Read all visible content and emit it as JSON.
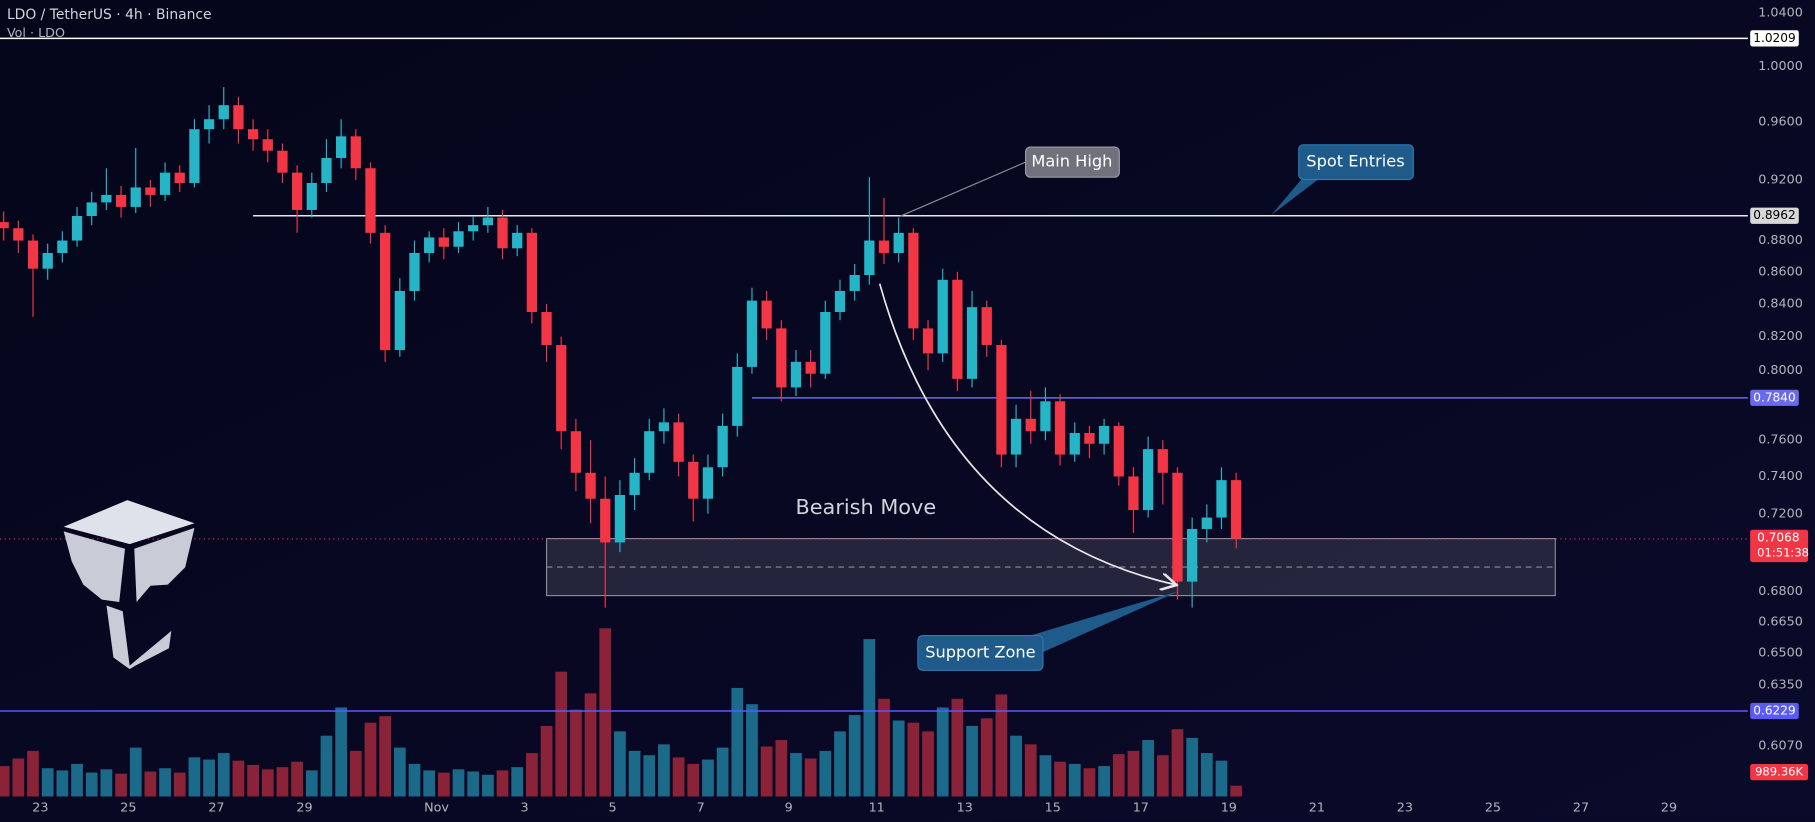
{
  "header": {
    "symbol": "LDO / TetherUS · 4h · Binance",
    "volume_label": "Vol · LDO"
  },
  "chart_data": {
    "type": "candlestick",
    "up_color": "#26b5c6",
    "down_color": "#f23645",
    "vol_up_color": "#1c6a8a",
    "vol_down_color": "#8a2238",
    "x": [
      4,
      12,
      20,
      28,
      36,
      44,
      52,
      60,
      68,
      76,
      84,
      92,
      100,
      108,
      116,
      124,
      132,
      140,
      148,
      156,
      164,
      172,
      180,
      188,
      196,
      204,
      212,
      220,
      228,
      236,
      244,
      252,
      260,
      268,
      276,
      284,
      292,
      300,
      308,
      316,
      324,
      332,
      340,
      348,
      356,
      364,
      372,
      380,
      388,
      396,
      404,
      412,
      420,
      428,
      436,
      444,
      452,
      460,
      468,
      476,
      484,
      492,
      500,
      508,
      516,
      524,
      532,
      540,
      548,
      556,
      564,
      572,
      580,
      588,
      596,
      604,
      612,
      620,
      628,
      636,
      644,
      652,
      660,
      668,
      676
    ],
    "candles": [
      [
        0.892,
        0.899,
        0.88,
        0.888
      ],
      [
        0.888,
        0.893,
        0.872,
        0.88
      ],
      [
        0.88,
        0.884,
        0.832,
        0.862
      ],
      [
        0.862,
        0.878,
        0.855,
        0.872
      ],
      [
        0.872,
        0.886,
        0.866,
        0.88
      ],
      [
        0.88,
        0.902,
        0.876,
        0.896
      ],
      [
        0.896,
        0.912,
        0.89,
        0.905
      ],
      [
        0.905,
        0.928,
        0.9,
        0.91
      ],
      [
        0.91,
        0.916,
        0.895,
        0.902
      ],
      [
        0.902,
        0.942,
        0.898,
        0.915
      ],
      [
        0.915,
        0.92,
        0.902,
        0.91
      ],
      [
        0.91,
        0.932,
        0.906,
        0.925
      ],
      [
        0.925,
        0.93,
        0.912,
        0.918
      ],
      [
        0.918,
        0.962,
        0.915,
        0.955
      ],
      [
        0.955,
        0.972,
        0.945,
        0.962
      ],
      [
        0.962,
        0.985,
        0.955,
        0.972
      ],
      [
        0.972,
        0.978,
        0.945,
        0.955
      ],
      [
        0.955,
        0.962,
        0.94,
        0.948
      ],
      [
        0.948,
        0.955,
        0.932,
        0.94
      ],
      [
        0.94,
        0.945,
        0.918,
        0.925
      ],
      [
        0.925,
        0.93,
        0.885,
        0.9
      ],
      [
        0.9,
        0.925,
        0.895,
        0.918
      ],
      [
        0.918,
        0.948,
        0.912,
        0.935
      ],
      [
        0.935,
        0.962,
        0.928,
        0.95
      ],
      [
        0.95,
        0.955,
        0.92,
        0.928
      ],
      [
        0.928,
        0.932,
        0.878,
        0.885
      ],
      [
        0.885,
        0.89,
        0.805,
        0.812
      ],
      [
        0.812,
        0.856,
        0.808,
        0.848
      ],
      [
        0.848,
        0.88,
        0.842,
        0.872
      ],
      [
        0.872,
        0.886,
        0.866,
        0.882
      ],
      [
        0.882,
        0.888,
        0.868,
        0.876
      ],
      [
        0.876,
        0.892,
        0.872,
        0.886
      ],
      [
        0.886,
        0.896,
        0.88,
        0.89
      ],
      [
        0.89,
        0.902,
        0.885,
        0.895
      ],
      [
        0.895,
        0.9,
        0.868,
        0.875
      ],
      [
        0.875,
        0.89,
        0.87,
        0.885
      ],
      [
        0.885,
        0.888,
        0.828,
        0.835
      ],
      [
        0.835,
        0.84,
        0.805,
        0.815
      ],
      [
        0.815,
        0.82,
        0.755,
        0.765
      ],
      [
        0.765,
        0.772,
        0.732,
        0.742
      ],
      [
        0.742,
        0.76,
        0.715,
        0.728
      ],
      [
        0.728,
        0.74,
        0.672,
        0.705
      ],
      [
        0.705,
        0.738,
        0.7,
        0.73
      ],
      [
        0.73,
        0.75,
        0.722,
        0.742
      ],
      [
        0.742,
        0.772,
        0.738,
        0.765
      ],
      [
        0.765,
        0.778,
        0.758,
        0.77
      ],
      [
        0.77,
        0.775,
        0.74,
        0.748
      ],
      [
        0.748,
        0.752,
        0.716,
        0.728
      ],
      [
        0.728,
        0.752,
        0.72,
        0.745
      ],
      [
        0.745,
        0.775,
        0.74,
        0.768
      ],
      [
        0.768,
        0.81,
        0.762,
        0.802
      ],
      [
        0.802,
        0.85,
        0.798,
        0.842
      ],
      [
        0.842,
        0.848,
        0.818,
        0.825
      ],
      [
        0.825,
        0.83,
        0.782,
        0.79
      ],
      [
        0.79,
        0.812,
        0.785,
        0.805
      ],
      [
        0.805,
        0.812,
        0.79,
        0.798
      ],
      [
        0.798,
        0.842,
        0.795,
        0.835
      ],
      [
        0.835,
        0.855,
        0.83,
        0.848
      ],
      [
        0.848,
        0.865,
        0.842,
        0.858
      ],
      [
        0.858,
        0.922,
        0.852,
        0.88
      ],
      [
        0.88,
        0.908,
        0.865,
        0.872
      ],
      [
        0.872,
        0.895,
        0.866,
        0.885
      ],
      [
        0.885,
        0.888,
        0.818,
        0.825
      ],
      [
        0.825,
        0.83,
        0.8,
        0.81
      ],
      [
        0.81,
        0.862,
        0.805,
        0.855
      ],
      [
        0.855,
        0.86,
        0.788,
        0.795
      ],
      [
        0.795,
        0.848,
        0.79,
        0.838
      ],
      [
        0.838,
        0.842,
        0.808,
        0.815
      ],
      [
        0.815,
        0.818,
        0.745,
        0.752
      ],
      [
        0.752,
        0.78,
        0.745,
        0.772
      ],
      [
        0.772,
        0.788,
        0.758,
        0.765
      ],
      [
        0.765,
        0.79,
        0.76,
        0.782
      ],
      [
        0.782,
        0.786,
        0.746,
        0.752
      ],
      [
        0.752,
        0.77,
        0.748,
        0.764
      ],
      [
        0.764,
        0.768,
        0.75,
        0.758
      ],
      [
        0.758,
        0.772,
        0.752,
        0.768
      ],
      [
        0.768,
        0.77,
        0.735,
        0.74
      ],
      [
        0.74,
        0.745,
        0.71,
        0.722
      ],
      [
        0.722,
        0.762,
        0.718,
        0.755
      ],
      [
        0.755,
        0.76,
        0.725,
        0.742
      ],
      [
        0.742,
        0.745,
        0.676,
        0.685
      ],
      [
        0.685,
        0.718,
        0.672,
        0.712
      ],
      [
        0.712,
        0.725,
        0.705,
        0.718
      ],
      [
        0.718,
        0.745,
        0.712,
        0.738
      ],
      [
        0.738,
        0.742,
        0.702,
        0.707
      ]
    ],
    "volume": [
      2800,
      3500,
      4200,
      2600,
      2400,
      3000,
      2200,
      2500,
      2100,
      4500,
      2300,
      2600,
      2200,
      3600,
      3400,
      4000,
      3300,
      2900,
      2500,
      2700,
      3200,
      2400,
      5600,
      8200,
      4200,
      6800,
      7400,
      4500,
      3000,
      2400,
      2200,
      2500,
      2300,
      2000,
      2400,
      2700,
      4000,
      6500,
      11500,
      8000,
      9500,
      15500,
      6000,
      4200,
      3800,
      4800,
      3600,
      3000,
      3400,
      4500,
      10000,
      8500,
      4600,
      5200,
      4000,
      3500,
      4200,
      6000,
      7500,
      14500,
      9000,
      7000,
      6800,
      6000,
      8200,
      9000,
      6500,
      7200,
      9400,
      5600,
      4800,
      3800,
      3200,
      3000,
      2600,
      2800,
      3900,
      4200,
      5200,
      3800,
      6200,
      5400,
      4000,
      3300,
      989.36
    ],
    "last_volume_label": "989.36K",
    "vlim": [
      0,
      16000
    ],
    "xlim": [
      2,
      955
    ],
    "xticks": [
      {
        "value": 24,
        "label": "23"
      },
      {
        "value": 72,
        "label": "25"
      },
      {
        "value": 120,
        "label": "27"
      },
      {
        "value": 168,
        "label": "29"
      },
      {
        "value": 240,
        "label": "Nov"
      },
      {
        "value": 288,
        "label": "3"
      },
      {
        "value": 336,
        "label": "5"
      },
      {
        "value": 384,
        "label": "7"
      },
      {
        "value": 432,
        "label": "9"
      },
      {
        "value": 480,
        "label": "11"
      },
      {
        "value": 528,
        "label": "13"
      },
      {
        "value": 576,
        "label": "15"
      },
      {
        "value": 624,
        "label": "17"
      },
      {
        "value": 672,
        "label": "19"
      },
      {
        "value": 720,
        "label": "21"
      },
      {
        "value": 768,
        "label": "23"
      },
      {
        "value": 816,
        "label": "25"
      },
      {
        "value": 864,
        "label": "27"
      },
      {
        "value": 912,
        "label": "29"
      }
    ],
    "ylim": [
      0.585,
      1.05
    ],
    "log_scale": true,
    "yticks": [
      {
        "value": 1.04,
        "label": "1.0400"
      },
      {
        "value": 1.0,
        "label": "1.0000"
      },
      {
        "value": 0.96,
        "label": "0.9600"
      },
      {
        "value": 0.92,
        "label": "0.9200"
      },
      {
        "value": 0.88,
        "label": "0.8800"
      },
      {
        "value": 0.86,
        "label": "0.8600"
      },
      {
        "value": 0.84,
        "label": "0.8400"
      },
      {
        "value": 0.82,
        "label": "0.8200"
      },
      {
        "value": 0.8,
        "label": "0.8000"
      },
      {
        "value": 0.76,
        "label": "0.7600"
      },
      {
        "value": 0.74,
        "label": "0.7400"
      },
      {
        "value": 0.72,
        "label": "0.7200"
      },
      {
        "value": 0.68,
        "label": "0.6800"
      },
      {
        "value": 0.665,
        "label": "0.6650"
      },
      {
        "value": 0.65,
        "label": "0.6500"
      },
      {
        "value": 0.635,
        "label": "0.6350"
      },
      {
        "value": 0.607,
        "label": "0.6070"
      }
    ],
    "price_lines": [
      {
        "value": 1.0209,
        "label": "1.0209",
        "color": "#ffffff",
        "tag_color": "#ffffff",
        "tag_text": "#000000",
        "from": 2
      },
      {
        "value": 0.8962,
        "label": "0.8962",
        "color": "#e8e8e8",
        "tag_color": "#d8d8d8",
        "tag_text": "#000000",
        "from": 140
      },
      {
        "value": 0.784,
        "label": "0.7840",
        "color": "#6a6af0",
        "tag_color": "#6a6af0",
        "tag_text": "#ffffff",
        "from": 412
      },
      {
        "value": 0.6229,
        "label": "0.6229",
        "color": "#5a5af5",
        "tag_color": "#5a5af5",
        "tag_text": "#ffffff",
        "from": 2
      }
    ],
    "current_price": {
      "value": 0.7068,
      "label": "0.7068",
      "countdown": "01:51:38",
      "color": "#f23645"
    },
    "zone": {
      "top": 0.707,
      "bottom": 0.678,
      "from": 300,
      "to": 850
    },
    "annotations": {
      "main_high": "Main High",
      "spot_entries": "Spot Entries",
      "support_zone": "Support Zone",
      "bearish_move": "Bearish Move"
    }
  }
}
